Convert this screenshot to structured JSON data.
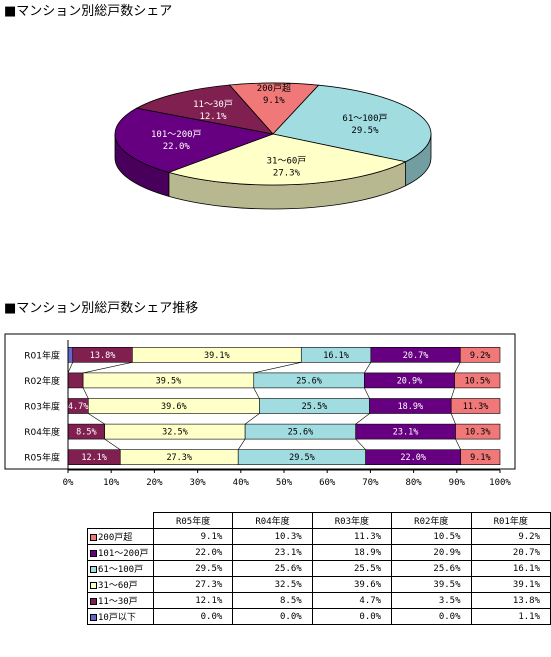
{
  "titles": {
    "pie": "■マンション別総戸数シェア",
    "bar": "■マンション別総戸数シェア推移"
  },
  "colors": {
    "200戸超": "#f07878",
    "101～200戸": "#660080",
    "61～100戸": "#a0dce0",
    "31～60戸": "#ffffc8",
    "11～30戸": "#802050",
    "10戸以下": "#6666cc"
  },
  "chart_data": [
    {
      "type": "pie",
      "title": "■マンション別総戸数シェア",
      "slices": [
        {
          "label": "200戸超",
          "value": 9.1,
          "text": "9.1%"
        },
        {
          "label": "61～100戸",
          "value": 29.5,
          "text": "29.5%"
        },
        {
          "label": "31～60戸",
          "value": 27.3,
          "text": "27.3%"
        },
        {
          "label": "101～200戸",
          "value": 22.0,
          "text": "22.0%"
        },
        {
          "label": "11～30戸",
          "value": 12.1,
          "text": "12.1%"
        }
      ]
    },
    {
      "type": "bar",
      "orientation": "horizontal",
      "stacked": "percent",
      "title": "■マンション別総戸数シェア推移",
      "categories": [
        "R01年度",
        "R02年度",
        "R03年度",
        "R04年度",
        "R05年度"
      ],
      "series": [
        {
          "name": "10戸以下",
          "values": [
            1.1,
            0.0,
            0.0,
            0.0,
            0.0
          ],
          "labels": [
            "",
            "",
            "",
            "",
            ""
          ]
        },
        {
          "name": "11～30戸",
          "values": [
            13.8,
            3.5,
            4.7,
            8.5,
            12.1
          ],
          "labels": [
            "13.8%",
            "",
            "4.7%",
            "8.5%",
            "12.1%"
          ]
        },
        {
          "name": "31～60戸",
          "values": [
            39.1,
            39.5,
            39.6,
            32.5,
            27.3
          ],
          "labels": [
            "39.1%",
            "39.5%",
            "39.6%",
            "32.5%",
            "27.3%"
          ]
        },
        {
          "name": "61～100戸",
          "values": [
            16.1,
            25.6,
            25.5,
            25.6,
            29.5
          ],
          "labels": [
            "16.1%",
            "25.6%",
            "25.5%",
            "25.6%",
            "29.5%"
          ]
        },
        {
          "name": "101～200戸",
          "values": [
            20.7,
            20.9,
            18.9,
            23.1,
            22.0
          ],
          "labels": [
            "20.7%",
            "20.9%",
            "18.9%",
            "23.1%",
            "22.0%"
          ]
        },
        {
          "name": "200戸超",
          "values": [
            9.2,
            10.5,
            11.3,
            10.3,
            9.1
          ],
          "labels": [
            "9.2%",
            "10.5%",
            "11.3%",
            "10.3%",
            "9.1%"
          ]
        }
      ],
      "xticks": [
        "0%",
        "10%",
        "20%",
        "30%",
        "40%",
        "50%",
        "60%",
        "70%",
        "80%",
        "90%",
        "100%"
      ],
      "xlim": [
        0,
        100
      ],
      "grid": false
    },
    {
      "type": "table",
      "columns": [
        "R05年度",
        "R04年度",
        "R03年度",
        "R02年度",
        "R01年度"
      ],
      "rows": [
        {
          "label": "200戸超",
          "values": [
            "9.1%",
            "10.3%",
            "11.3%",
            "10.5%",
            "9.2%"
          ]
        },
        {
          "label": "101～200戸",
          "values": [
            "22.0%",
            "23.1%",
            "18.9%",
            "20.9%",
            "20.7%"
          ]
        },
        {
          "label": "61～100戸",
          "values": [
            "29.5%",
            "25.6%",
            "25.5%",
            "25.6%",
            "16.1%"
          ]
        },
        {
          "label": "31～60戸",
          "values": [
            "27.3%",
            "32.5%",
            "39.6%",
            "39.5%",
            "39.1%"
          ]
        },
        {
          "label": "11～30戸",
          "values": [
            "12.1%",
            "8.5%",
            "4.7%",
            "3.5%",
            "13.8%"
          ]
        },
        {
          "label": "10戸以下",
          "values": [
            "0.0%",
            "0.0%",
            "0.0%",
            "0.0%",
            "1.1%"
          ]
        }
      ]
    }
  ]
}
